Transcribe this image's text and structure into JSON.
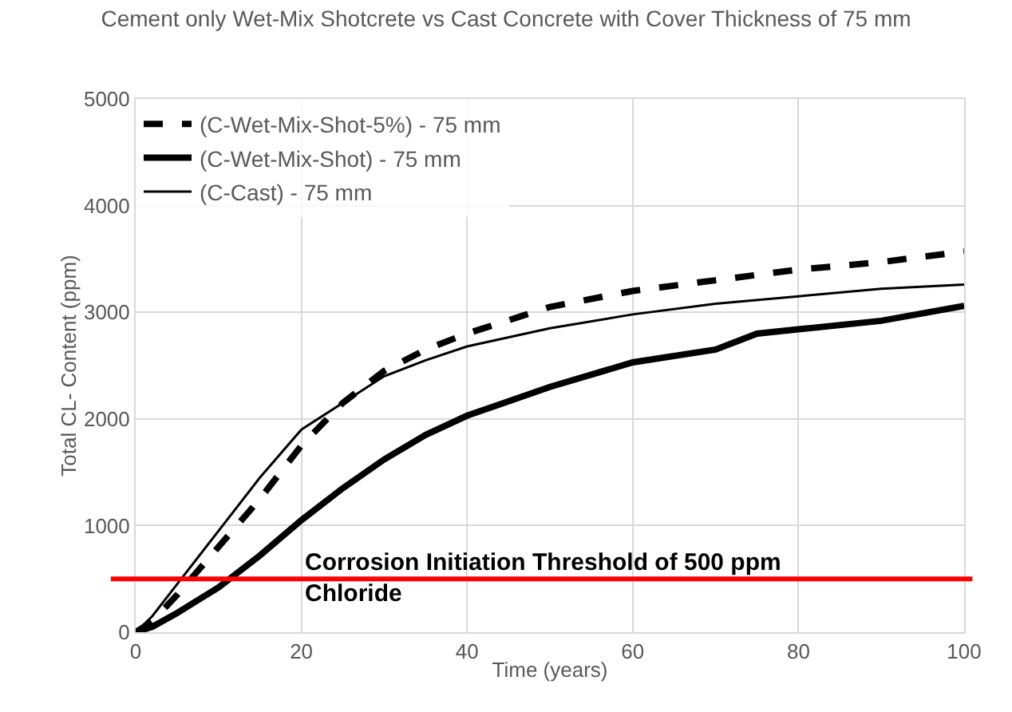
{
  "chart_data": {
    "type": "line",
    "title": "Cement only Wet-Mix Shotcrete vs Cast Concrete with Cover Thickness of 75 mm",
    "xlabel": "Time (years)",
    "ylabel": "Total CL- Content (ppm)",
    "xlim": [
      0,
      100
    ],
    "xticks": [
      0,
      20,
      40,
      60,
      80,
      100
    ],
    "ylim": [
      0,
      5000
    ],
    "yticks": [
      0,
      1000,
      2000,
      3000,
      4000,
      5000
    ],
    "grid": true,
    "legend": "top left",
    "marker": "none",
    "series": [
      {
        "name": "(C-Wet-Mix-Shot-5%) - 75 mm",
        "color": "#000000",
        "line_style": "dashed",
        "x": [
          0,
          2,
          5,
          10,
          15,
          20,
          25,
          30,
          35,
          40,
          50,
          60,
          70,
          80,
          90,
          100
        ],
        "values": [
          0,
          100,
          350,
          800,
          1250,
          1750,
          2150,
          2450,
          2650,
          2800,
          3050,
          3200,
          3300,
          3400,
          3470,
          3570
        ]
      },
      {
        "name": "(C-Wet-Mix-Shot) - 75 mm",
        "color": "#000000",
        "line_style": "solid",
        "x": [
          0,
          2,
          5,
          10,
          15,
          20,
          25,
          30,
          35,
          40,
          50,
          60,
          70,
          75,
          80,
          90,
          100
        ],
        "values": [
          0,
          50,
          180,
          420,
          720,
          1050,
          1350,
          1620,
          1850,
          2030,
          2300,
          2530,
          2650,
          2800,
          2840,
          2920,
          3060
        ]
      },
      {
        "name": "(C-Cast) - 75 mm",
        "color": "#000000",
        "line_style": "solid",
        "x": [
          0,
          2,
          5,
          10,
          15,
          20,
          25,
          30,
          35,
          40,
          50,
          60,
          70,
          80,
          90,
          100
        ],
        "values": [
          0,
          150,
          450,
          950,
          1450,
          1900,
          2150,
          2400,
          2550,
          2680,
          2850,
          2980,
          3080,
          3150,
          3220,
          3260
        ]
      }
    ],
    "ref_lines": [
      {
        "axis": "y",
        "value": 500,
        "label": "Corrosion Initiation Threshold of 500 ppm\nChloride",
        "color": "#ff0000",
        "line_style": "solid"
      }
    ]
  }
}
